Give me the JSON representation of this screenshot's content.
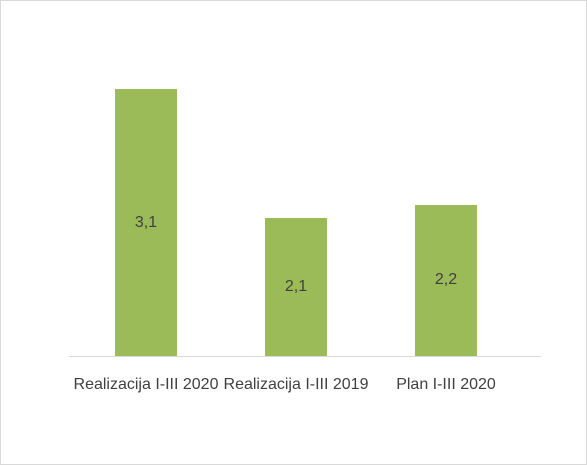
{
  "chart_data": {
    "type": "bar",
    "categories": [
      "Realizacija I-III 2020",
      "Realizacija I-III 2019",
      "Plan I-III 2020"
    ],
    "values": [
      3.1,
      2.1,
      2.2
    ],
    "value_labels": [
      "3,1",
      "2,1",
      "2,2"
    ],
    "color": "#9bbb59",
    "ylim": [
      1.02,
      3.5
    ]
  }
}
